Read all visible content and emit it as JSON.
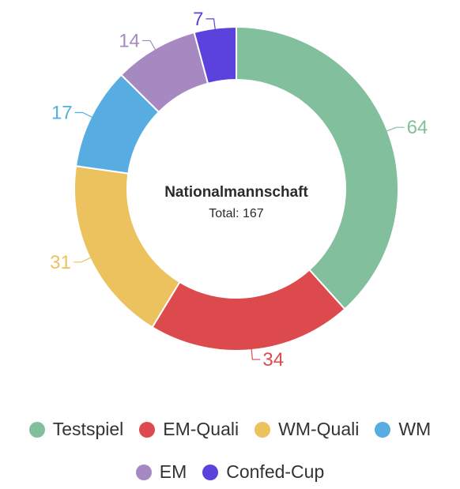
{
  "chart_data": {
    "type": "pie",
    "variant": "donut",
    "center_title": "Nationalmannschaft",
    "center_subtitle": "Total: 167",
    "categories": [
      "Testspiel",
      "EM-Quali",
      "WM-Quali",
      "WM",
      "EM",
      "Confed-Cup"
    ],
    "values": [
      64,
      34,
      31,
      17,
      14,
      7
    ],
    "colors": [
      "#82bf9c",
      "#dd4a4e",
      "#ebc25e",
      "#57ade2",
      "#a789c2",
      "#5b42dc"
    ],
    "legend_position": "bottom"
  }
}
